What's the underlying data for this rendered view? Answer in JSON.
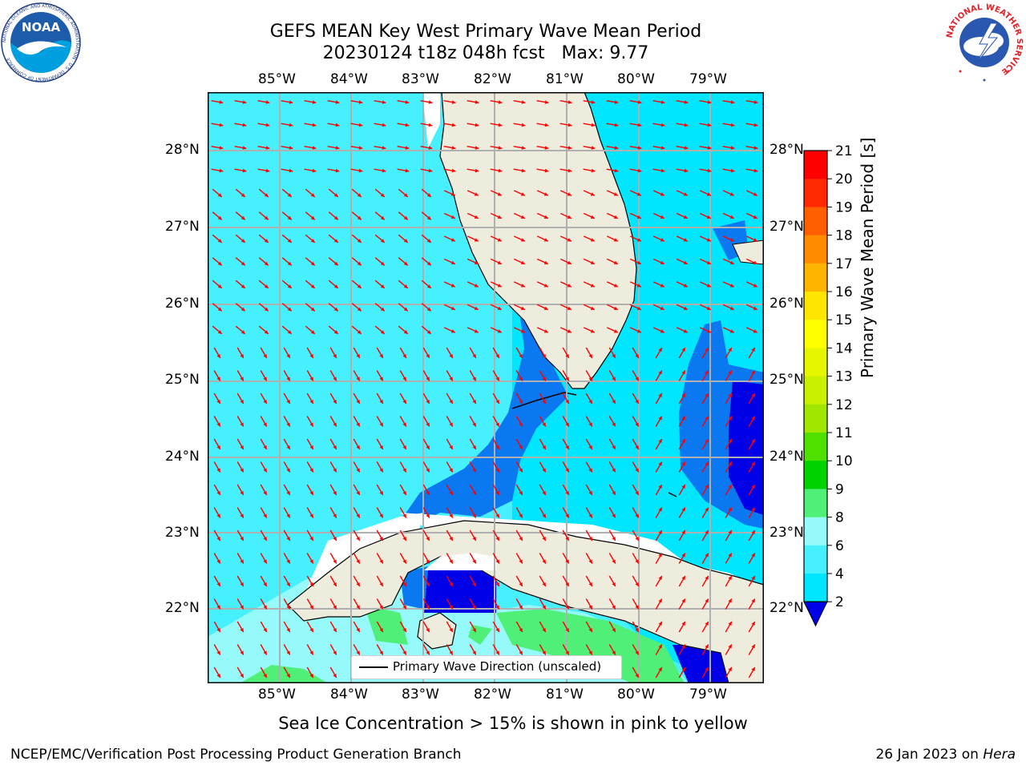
{
  "title": {
    "line1": "GEFS MEAN Key West Primary Wave Mean Period",
    "line2": "20230124 t18z 048h fcst   Max: 9.77"
  },
  "map": {
    "lon_labels": [
      "85°W",
      "84°W",
      "83°W",
      "82°W",
      "81°W",
      "80°W",
      "79°W"
    ],
    "lat_labels": [
      "28°N",
      "27°N",
      "26°N",
      "25°N",
      "24°N",
      "23°N",
      "22°N"
    ],
    "land_color": "#eeecdd",
    "grid_color": "#b0b0b0",
    "arrow_color": "#ff0000"
  },
  "legend": {
    "label": "Primary Wave Direction (unscaled)"
  },
  "colorbar": {
    "title": "Primary Wave Mean Period [s]",
    "ticks": [
      "2",
      "4",
      "6",
      "8",
      "9",
      "10",
      "11",
      "12",
      "13",
      "14",
      "15",
      "16",
      "17",
      "18",
      "19",
      "20",
      "21"
    ],
    "colors": [
      "#0a78f0",
      "#00e6ff",
      "#46f0ff",
      "#96fafa",
      "#50f078",
      "#00d200",
      "#50e000",
      "#a0e600",
      "#c8f000",
      "#e6f500",
      "#ffff00",
      "#ffe600",
      "#ffb400",
      "#ff8c00",
      "#ff5f00",
      "#ff2800",
      "#ff0000"
    ],
    "extend_color": "#0000e6"
  },
  "footer": {
    "note": "Sea Ice Concentration > 15% is shown in pink to yellow",
    "left": "NCEP/EMC/Verification Post Processing Product Generation Branch",
    "right_date": "26 Jan 2023 on",
    "right_machine": "Hera"
  },
  "logos": {
    "noaa_text": "NOAA",
    "noaa_ring": "NATIONAL OCEANIC AND ATMOSPHERIC ADMINISTRATION · U.S. DEPARTMENT OF COMMERCE",
    "nws_ring": "NATIONAL WEATHER SERVICE"
  }
}
